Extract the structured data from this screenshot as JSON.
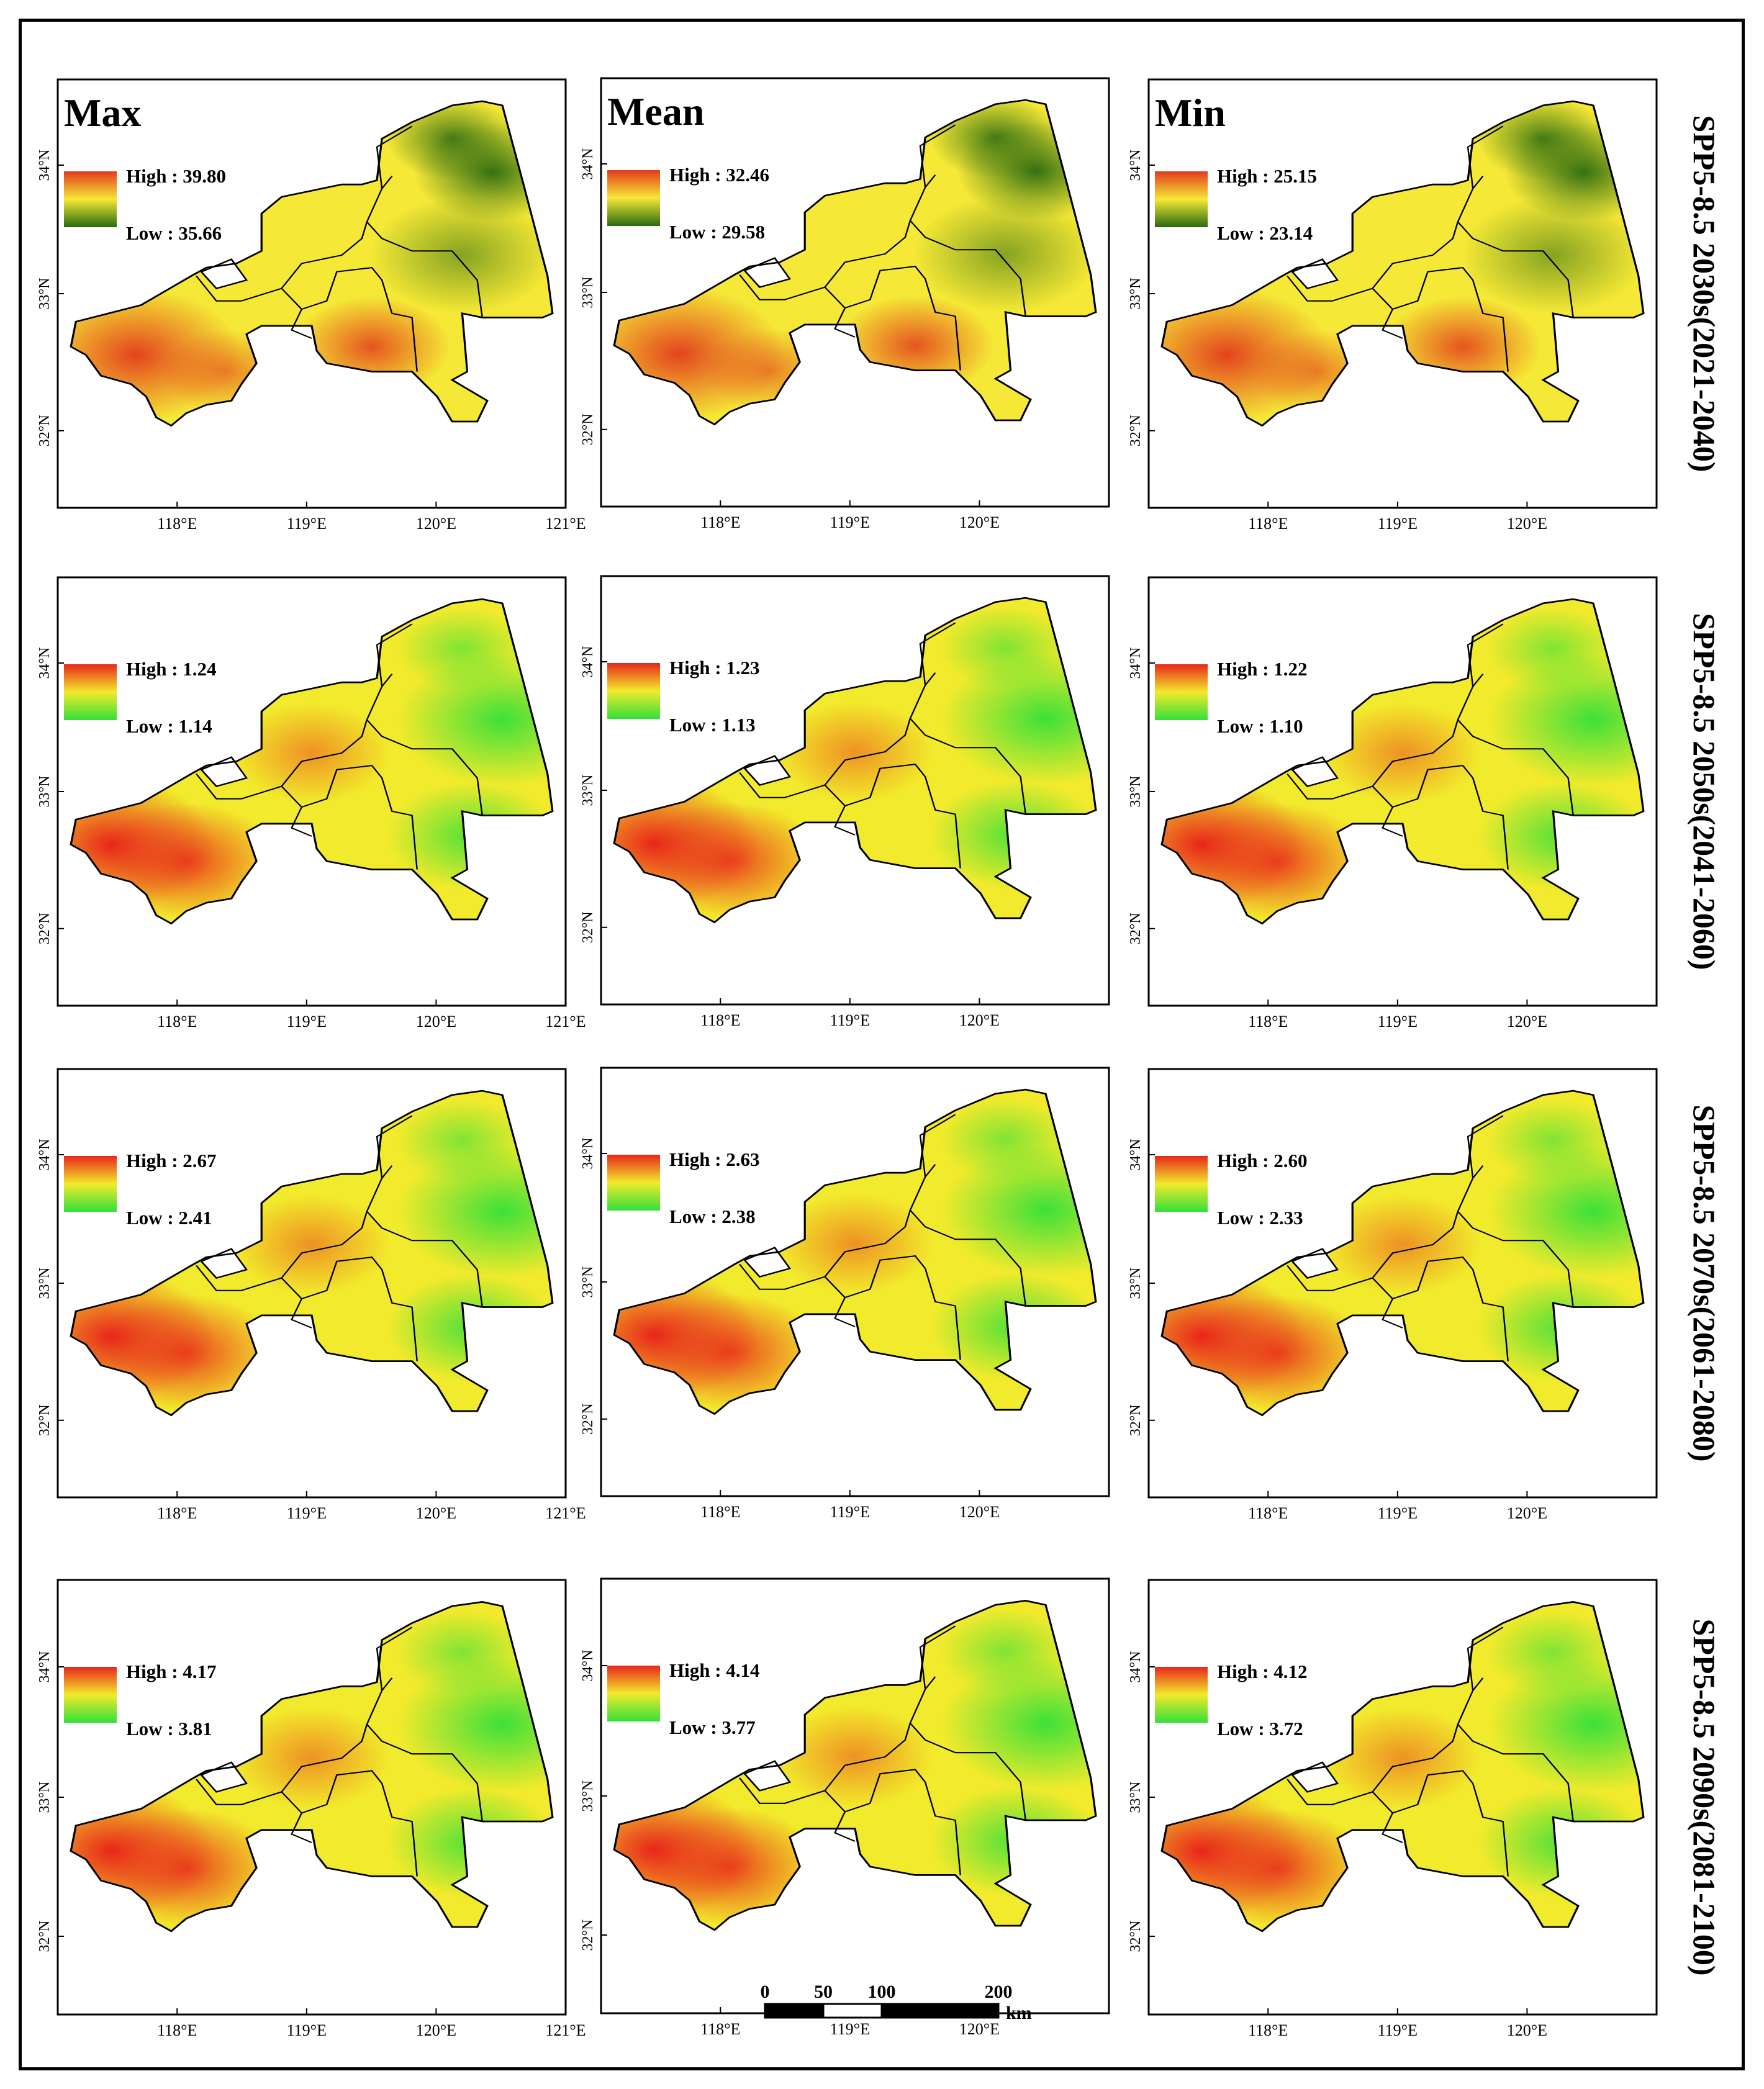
{
  "columns": [
    {
      "label": "Max"
    },
    {
      "label": "Mean"
    },
    {
      "label": "Min"
    }
  ],
  "rows": [
    {
      "label": "SPP5-8.5 2030s(2021-2040)",
      "scheme": "classic"
    },
    {
      "label": "SPP5-8.5 2050s(2041-2060)",
      "scheme": "warm"
    },
    {
      "label": "SPP5-8.5 2070s(2061-2080)",
      "scheme": "warm"
    },
    {
      "label": "SPP5-8.5 2090s(2081-2100)",
      "scheme": "warm"
    }
  ],
  "panels": [
    [
      {
        "high": "High : 39.80",
        "low": "Low : 35.66"
      },
      {
        "high": "High : 32.46",
        "low": "Low : 29.58"
      },
      {
        "high": "High : 25.15",
        "low": "Low : 23.14"
      }
    ],
    [
      {
        "high": "High : 1.24",
        "low": "Low : 1.14"
      },
      {
        "high": "High : 1.23",
        "low": "Low : 1.13"
      },
      {
        "high": "High : 1.22",
        "low": "Low : 1.10"
      }
    ],
    [
      {
        "high": "High : 2.67",
        "low": "Low : 2.41"
      },
      {
        "high": "High : 2.63",
        "low": "Low : 2.38"
      },
      {
        "high": "High : 2.60",
        "low": "Low : 2.33"
      }
    ],
    [
      {
        "high": "High : 4.17",
        "low": "Low : 3.81"
      },
      {
        "high": "High : 4.14",
        "low": "Low : 3.77"
      },
      {
        "high": "High : 4.12",
        "low": "Low : 3.72"
      }
    ]
  ],
  "axes": {
    "lon_ticks": [
      "118°E",
      "119°E",
      "120°E",
      "121°E"
    ],
    "lat_ticks": [
      "34°N",
      "33°N",
      "32°N"
    ]
  },
  "scale_bar": {
    "ticks": [
      "0",
      "50",
      "100",
      "200"
    ],
    "unit": "km"
  },
  "colors": {
    "classic_high": "#e23b1c",
    "classic_mid": "#f5e836",
    "classic_low": "#2a6a10",
    "warm_high": "#e8261a",
    "warm_mid": "#f2ea2c",
    "warm_low": "#33e03a"
  }
}
